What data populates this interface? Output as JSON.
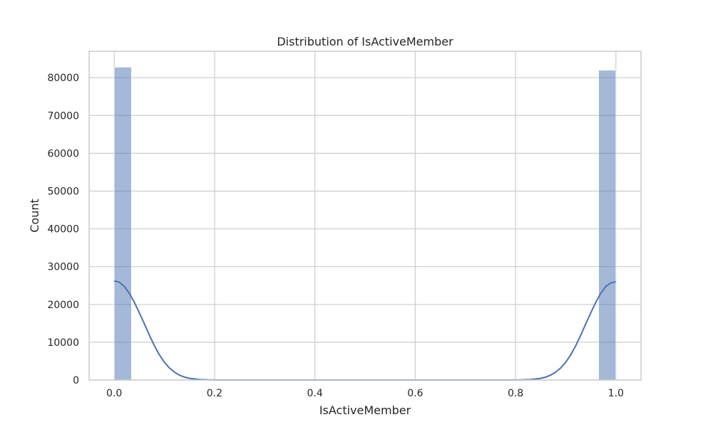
{
  "chart_data": {
    "type": "histogram",
    "title": "Distribution of IsActiveMember",
    "xlabel": "IsActiveMember",
    "ylabel": "Count",
    "xlim": [
      -0.05,
      1.05
    ],
    "ylim": [
      0,
      87000
    ],
    "xticks": [
      0.0,
      0.2,
      0.4,
      0.6,
      0.8,
      1.0
    ],
    "xtick_labels": [
      "0.0",
      "0.2",
      "0.4",
      "0.6",
      "0.8",
      "1.0"
    ],
    "yticks": [
      0,
      10000,
      20000,
      30000,
      40000,
      50000,
      60000,
      70000,
      80000
    ],
    "ytick_labels": [
      "0",
      "10000",
      "20000",
      "30000",
      "40000",
      "50000",
      "60000",
      "70000",
      "80000"
    ],
    "grid": true,
    "bins": [
      {
        "x0": 0.0,
        "x1": 0.0345,
        "count": 82800
      },
      {
        "x0": 0.9655,
        "x1": 1.0,
        "count": 82000
      }
    ],
    "kde": {
      "x": [
        0.0,
        0.01,
        0.02,
        0.03,
        0.04,
        0.05,
        0.06,
        0.07,
        0.08,
        0.09,
        0.1,
        0.11,
        0.12,
        0.13,
        0.14,
        0.15,
        0.17,
        0.19,
        0.22,
        0.25,
        0.5,
        0.75,
        0.78,
        0.81,
        0.83,
        0.85,
        0.86,
        0.87,
        0.88,
        0.89,
        0.9,
        0.91,
        0.92,
        0.93,
        0.94,
        0.95,
        0.96,
        0.97,
        0.98,
        0.99,
        1.0
      ],
      "y": [
        26200,
        25900,
        24800,
        23000,
        20600,
        17800,
        14900,
        11900,
        9100,
        6700,
        4700,
        3200,
        2100,
        1300,
        780,
        450,
        150,
        40,
        5,
        0,
        0,
        0,
        5,
        40,
        150,
        450,
        780,
        1300,
        2100,
        3200,
        4700,
        6700,
        9100,
        11900,
        14900,
        17800,
        20600,
        23000,
        24800,
        25700,
        26000
      ]
    },
    "colors": {
      "bar": "#4c72b0",
      "line": "#4c72b0",
      "grid": "#cccccc"
    }
  }
}
